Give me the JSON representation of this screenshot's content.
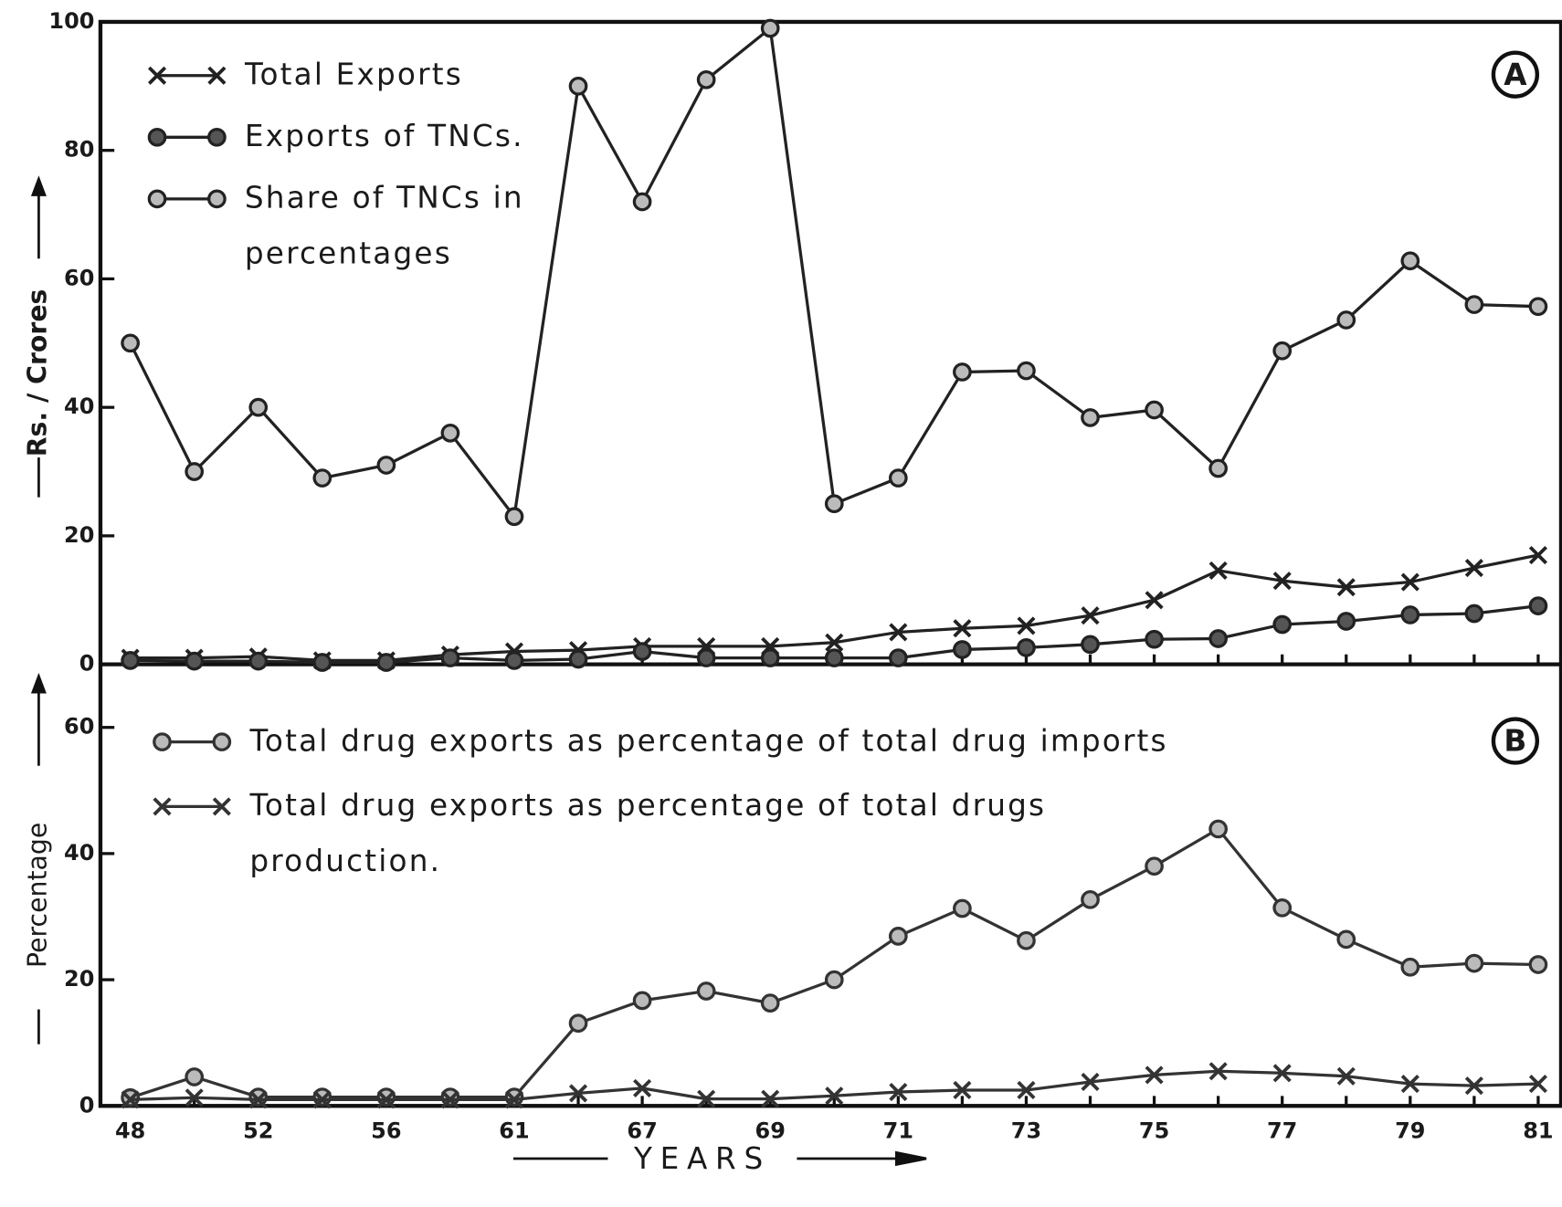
{
  "chart_data": [
    {
      "type": "line",
      "panel_label": "A",
      "ylabel": "Rs. / Crores",
      "ylim": [
        0,
        100
      ],
      "yticks": [
        0,
        20,
        40,
        60,
        80,
        100
      ],
      "series": [
        {
          "name": "Total Exports",
          "color": "#222222",
          "marker": "x",
          "values": [
            1,
            1,
            1.2,
            0.6,
            0.6,
            1.5,
            2,
            2.2,
            2.8,
            2.8,
            2.8,
            3.4,
            5,
            5.6,
            6,
            7.6,
            10,
            14.6,
            13,
            12,
            12.8,
            15,
            17
          ]
        },
        {
          "name": "Exports of TNCs.",
          "color": "#222222",
          "marker": "filled",
          "values": [
            0.6,
            0.5,
            0.5,
            0.3,
            0.3,
            1,
            0.6,
            0.8,
            2,
            1,
            1,
            1,
            1,
            2.3,
            2.6,
            3.1,
            3.9,
            4,
            6.2,
            6.7,
            7.7,
            7.9,
            9.1
          ]
        },
        {
          "name": "Share of TNCs in percentages",
          "color": "#222222",
          "marker": "open",
          "values": [
            50,
            30,
            40,
            29,
            31,
            36,
            23,
            90,
            72,
            91,
            99,
            25,
            29,
            45.5,
            45.7,
            38.4,
            39.6,
            30.5,
            48.8,
            53.6,
            62.8,
            56,
            55.7
          ]
        }
      ]
    },
    {
      "type": "line",
      "panel_label": "B",
      "ylabel": "Percentage",
      "xlabel": "YEARS",
      "categories": [
        "48",
        null,
        "52",
        null,
        "56",
        null,
        "61",
        null,
        "67",
        null,
        "69",
        null,
        "71",
        null,
        "73",
        null,
        "75",
        null,
        "77",
        null,
        "79",
        null,
        "81"
      ],
      "ylim": [
        0,
        70
      ],
      "yticks": [
        0,
        20,
        40,
        60
      ],
      "series": [
        {
          "name": "Total drug exports as percentage of total drug imports",
          "color": "#333333",
          "marker": "open",
          "values": [
            1.3,
            4.6,
            1.4,
            1.4,
            1.4,
            1.4,
            1.4,
            13.1,
            16.7,
            18.2,
            16.3,
            20,
            26.9,
            31.3,
            26.2,
            32.7,
            38,
            43.9,
            31.4,
            26.4,
            22,
            22.6,
            22.4
          ]
        },
        {
          "name": "Total drug exports as percentage of total drugs production.",
          "color": "#333333",
          "marker": "x",
          "values": [
            1,
            1.3,
            1,
            1,
            1,
            1,
            1,
            2,
            2.8,
            1.1,
            1.1,
            1.6,
            2.2,
            2.5,
            2.5,
            3.8,
            4.9,
            5.5,
            5.2,
            4.7,
            3.5,
            3.2,
            3.5
          ]
        }
      ]
    }
  ]
}
